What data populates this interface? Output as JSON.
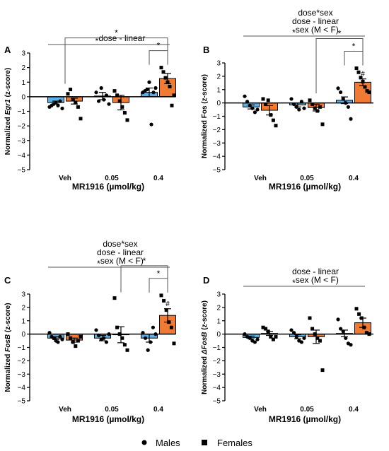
{
  "colors": {
    "males": "#5BB0E8",
    "females": "#EE7A34",
    "axis": "#000000",
    "annotation_line": "#555555"
  },
  "legend": {
    "males": "Males",
    "females": "Females",
    "male_marker": "circle",
    "female_marker": "square"
  },
  "chart_data": [
    {
      "panel": "A",
      "type": "bar",
      "categories": [
        "Veh",
        "0.05",
        "0.4"
      ],
      "xlabel": "MR1916 (µmol/kg)",
      "ylabel": "Normalized Egr1 (z-score)",
      "ylabel_pre": "Normalized ",
      "ylabel_italic": "Egr1",
      "ylabel_post": " (z-score)",
      "ylim": [
        -5,
        3
      ],
      "yticks": [
        -5,
        -4,
        -3,
        -2,
        -1,
        0,
        1,
        2,
        3
      ],
      "series": [
        {
          "name": "Males",
          "values": [
            -0.4,
            0.05,
            0.3
          ],
          "sem": [
            0.1,
            0.25,
            0.3
          ],
          "points": [
            [
              -0.7,
              -0.6,
              -0.5,
              -0.4,
              -0.6,
              -0.3,
              -0.8
            ],
            [
              0.3,
              -0.3,
              0.6,
              -0.2,
              0.1,
              -0.5
            ],
            [
              0.3,
              0.4,
              0.5,
              1.0,
              -1.9,
              0.3,
              0.6
            ]
          ]
        },
        {
          "name": "Females",
          "values": [
            -0.3,
            -0.4,
            1.25
          ],
          "sem": [
            0.2,
            0.5,
            0.35
          ],
          "points": [
            [
              0.2,
              0.5,
              -0.2,
              -0.4,
              -0.7,
              -1.5
            ],
            [
              0.4,
              0.1,
              -0.3,
              -0.7,
              -1.1,
              -1.6
            ],
            [
              2.0,
              1.7,
              1.3,
              1.0,
              0.7,
              -0.6,
              0.1
            ]
          ]
        }
      ],
      "annotations": [
        {
          "star": "*",
          "text": "dose - linear"
        }
      ],
      "sig_marks": [
        "*",
        "*"
      ],
      "hash_marks": []
    },
    {
      "panel": "B",
      "type": "bar",
      "categories": [
        "Veh",
        "0.05",
        "0.4"
      ],
      "xlabel": "MR1916 (µmol/kg)",
      "ylabel": "Normalized Fos (z-score)",
      "ylabel_pre": "Normalized Fos (z-score)",
      "ylabel_italic": "",
      "ylabel_post": "",
      "ylim": [
        -5,
        3
      ],
      "yticks": [
        -5,
        -4,
        -3,
        -2,
        -1,
        0,
        1,
        2,
        3
      ],
      "series": [
        {
          "name": "Males",
          "values": [
            -0.3,
            -0.15,
            0.2
          ],
          "sem": [
            0.15,
            0.15,
            0.25
          ],
          "points": [
            [
              0.5,
              0.1,
              -0.2,
              -0.4,
              -0.7,
              -0.5
            ],
            [
              0.3,
              -0.1,
              -0.3,
              -0.5,
              0.1,
              -0.4
            ],
            [
              1.1,
              0.8,
              0.3,
              0.0,
              -0.3,
              -1.2
            ]
          ]
        },
        {
          "name": "Females",
          "values": [
            -0.55,
            -0.35,
            1.55
          ],
          "sem": [
            0.35,
            0.25,
            0.25
          ],
          "points": [
            [
              0.3,
              -0.1,
              0.2,
              -0.9,
              -1.3,
              -1.7
            ],
            [
              0.2,
              -0.1,
              -0.4,
              -0.6,
              -0.3,
              -1.6
            ],
            [
              2.6,
              2.3,
              1.9,
              1.6,
              1.2,
              0.9,
              0.8
            ]
          ]
        }
      ],
      "annotations": [
        {
          "star": "",
          "text": "dose*sex"
        },
        {
          "star": "",
          "text": "dose - linear"
        },
        {
          "star": "*",
          "text": "sex (M < F)"
        }
      ],
      "sig_marks": [
        "*",
        "*"
      ],
      "hash_marks": [
        "#"
      ]
    },
    {
      "panel": "C",
      "type": "bar",
      "categories": [
        "Veh",
        "0.05",
        "0.4"
      ],
      "xlabel": "MR1916 (µmol/kg)",
      "ylabel": "Normalized FosB (z-score)",
      "ylabel_pre": "Normalized ",
      "ylabel_italic": "FosB",
      "ylabel_post": " (z-score)",
      "ylim": [
        -5,
        3
      ],
      "yticks": [
        -5,
        -4,
        -3,
        -2,
        -1,
        0,
        1,
        2,
        3
      ],
      "series": [
        {
          "name": "Males",
          "values": [
            -0.3,
            -0.3,
            -0.3
          ],
          "sem": [
            0.1,
            0.2,
            0.3
          ],
          "points": [
            [
              0.1,
              -0.2,
              -0.3,
              -0.5,
              -0.6,
              -0.2,
              -0.4
            ],
            [
              0.3,
              -0.1,
              -0.4,
              -0.3,
              -0.6,
              0.0
            ],
            [
              0.1,
              -0.3,
              -1.2,
              -0.6,
              0.5,
              0.0
            ]
          ]
        },
        {
          "name": "Females",
          "values": [
            -0.45,
            -0.05,
            1.4
          ],
          "sem": [
            0.15,
            0.6,
            0.5
          ],
          "points": [
            [
              0.0,
              -0.3,
              -0.6,
              -0.9,
              -0.5,
              -0.2
            ],
            [
              2.7,
              0.5,
              0.0,
              -0.3,
              -0.8,
              -1.2
            ],
            [
              2.9,
              2.5,
              1.8,
              0.9,
              0.5,
              -0.7
            ]
          ]
        }
      ],
      "annotations": [
        {
          "star": "",
          "text": "dose*sex"
        },
        {
          "star": "",
          "text": "dose - linear"
        },
        {
          "star": "*",
          "text": "sex (M < F)"
        }
      ],
      "sig_marks": [
        "*",
        "*"
      ],
      "hash_marks": [
        "#"
      ]
    },
    {
      "panel": "D",
      "type": "bar",
      "categories": [
        "Veh",
        "0.05",
        "0.4"
      ],
      "xlabel": "MR1916 (µmol/kg)",
      "ylabel": "Normalized ΔFosB (z-score)",
      "ylabel_pre": "Normalized ",
      "ylabel_italic": "ΔFosB",
      "ylabel_post": " (z-score)",
      "ylim": [
        -5,
        3
      ],
      "yticks": [
        -5,
        -4,
        -3,
        -2,
        -1,
        0,
        1,
        2,
        3
      ],
      "series": [
        {
          "name": "Males",
          "values": [
            -0.25,
            -0.2,
            0.05
          ],
          "sem": [
            0.1,
            0.15,
            0.25
          ],
          "points": [
            [
              0.0,
              -0.2,
              -0.3,
              -0.5,
              -0.6,
              -0.4
            ],
            [
              0.3,
              0.1,
              -0.2,
              -0.5,
              -0.6,
              -0.3
            ],
            [
              1.1,
              0.4,
              0.2,
              -0.3,
              -0.7,
              -0.8
            ]
          ]
        },
        {
          "name": "Females",
          "values": [
            0.05,
            -0.2,
            0.85
          ],
          "sem": [
            0.15,
            0.5,
            0.35
          ],
          "points": [
            [
              0.5,
              0.4,
              0.2,
              -0.2,
              -0.4,
              -0.2
            ],
            [
              1.2,
              0.4,
              0.0,
              -0.3,
              -0.5,
              -2.7
            ],
            [
              1.9,
              1.5,
              1.2,
              0.5,
              0.1,
              0.0
            ]
          ]
        }
      ],
      "annotations": [
        {
          "star": "",
          "text": "dose - linear"
        },
        {
          "star": "*",
          "text": "sex (M < F)"
        }
      ],
      "sig_marks": [],
      "hash_marks": []
    }
  ]
}
